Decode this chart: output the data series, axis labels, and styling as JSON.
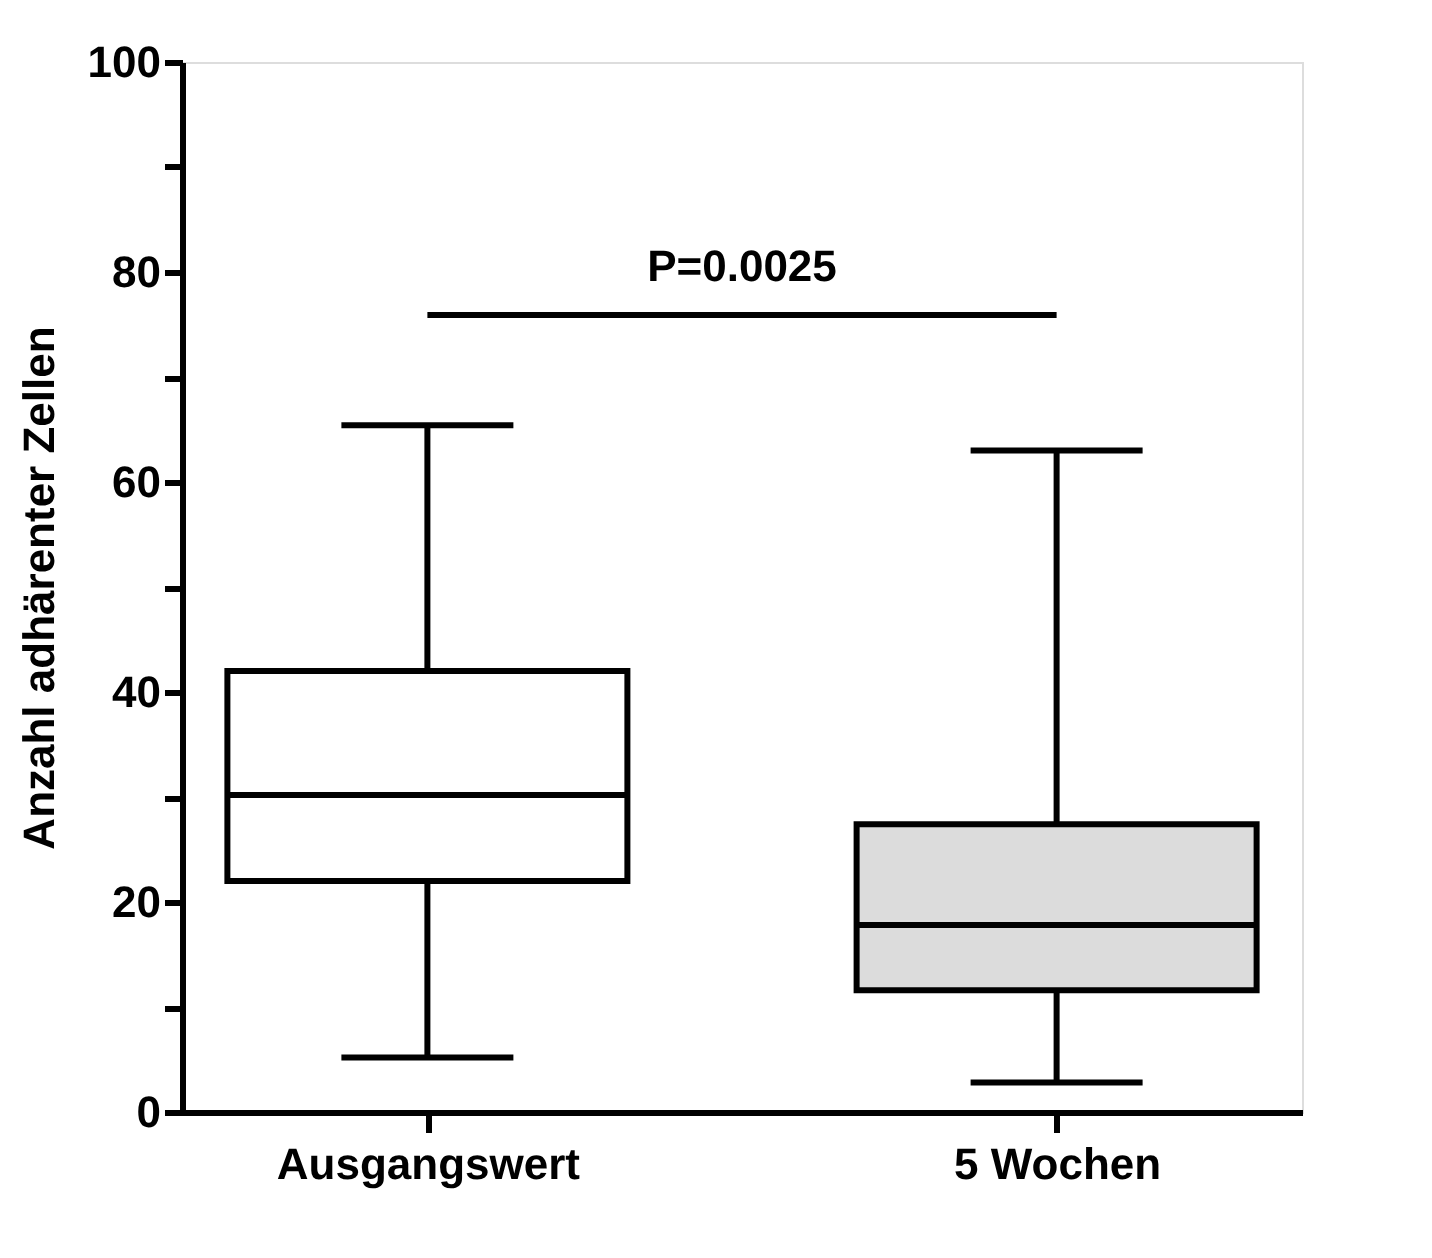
{
  "chart_data": {
    "type": "box",
    "ylabel": "Anzahl adhärenter Zellen",
    "categories": [
      "Ausgangswert",
      "5 Wochen"
    ],
    "boxes": [
      {
        "low": 5.2,
        "q1": 22,
        "median": 30.2,
        "q3": 42,
        "high": 65.4
      },
      {
        "low": 2.8,
        "q1": 11.6,
        "median": 17.8,
        "q3": 27.4,
        "high": 63
      }
    ],
    "colors": [
      "#ffffff",
      "#dcdcdc"
    ],
    "ylim": [
      0,
      100
    ],
    "yticks": [
      0,
      {
        "value": 10,
        "label": null
      },
      20,
      {
        "value": 30,
        "label": null
      },
      40,
      {
        "value": 50,
        "label": null
      },
      60,
      {
        "value": 70,
        "label": null
      },
      80,
      {
        "value": 90,
        "label": null
      },
      100
    ],
    "annotations": [
      "P=0.0025"
    ],
    "grid": false
  }
}
